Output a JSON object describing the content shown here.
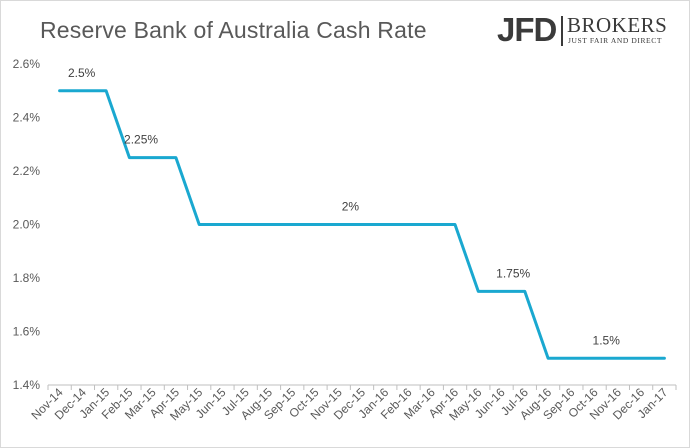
{
  "logo": {
    "brand": "JFD",
    "name": "BROKERS",
    "tagline": "JUST FAIR AND DIRECT"
  },
  "chart_data": {
    "type": "line",
    "title": "Reserve Bank of Australia Cash Rate",
    "xlabel": "",
    "ylabel": "",
    "categories": [
      "Nov-14",
      "Dec-14",
      "Jan-15",
      "Feb-15",
      "Mar-15",
      "Apr-15",
      "May-15",
      "Jun-15",
      "Jul-15",
      "Aug-15",
      "Sep-15",
      "Oct-15",
      "Nov-15",
      "Dec-15",
      "Jan-16",
      "Feb-16",
      "Mar-16",
      "Apr-16",
      "May-16",
      "Jun-16",
      "Jul-16",
      "Aug-16",
      "Sep-16",
      "Oct-16",
      "Nov-16",
      "Dec-16",
      "Jan-17"
    ],
    "values": [
      2.5,
      2.5,
      2.5,
      2.25,
      2.25,
      2.25,
      2.0,
      2.0,
      2.0,
      2.0,
      2.0,
      2.0,
      2.0,
      2.0,
      2.0,
      2.0,
      2.0,
      2.0,
      1.75,
      1.75,
      1.75,
      1.5,
      1.5,
      1.5,
      1.5,
      1.5,
      1.5
    ],
    "ylim": [
      1.4,
      2.6
    ],
    "yticks": [
      "1.4%",
      "1.6%",
      "1.8%",
      "2.0%",
      "2.2%",
      "2.4%",
      "2.6%"
    ],
    "ytick_values": [
      1.4,
      1.6,
      1.8,
      2.0,
      2.2,
      2.4,
      2.6
    ],
    "grid": false,
    "line_color": "#1aa8d0",
    "annotations": [
      {
        "index": 0,
        "value": 2.5,
        "text": "2.5%"
      },
      {
        "index": 3,
        "value": 2.25,
        "text": "2.25%"
      },
      {
        "index": 12,
        "value": 2.0,
        "text": "2%"
      },
      {
        "index": 19,
        "value": 1.75,
        "text": "1.75%"
      },
      {
        "index": 23,
        "value": 1.5,
        "text": "1.5%"
      }
    ]
  }
}
